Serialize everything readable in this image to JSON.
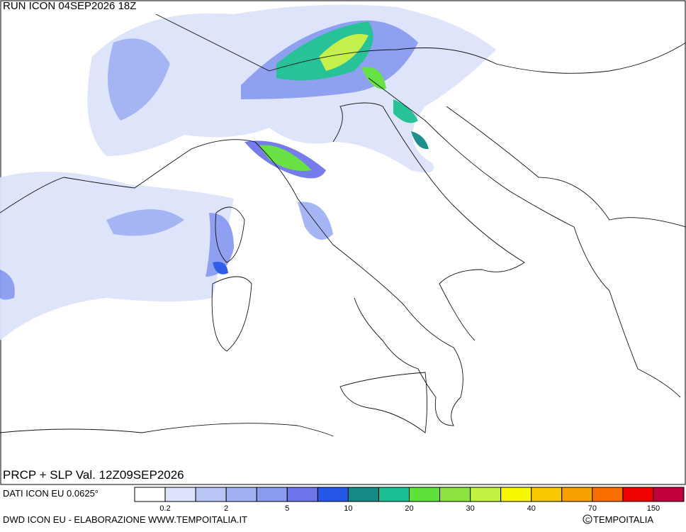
{
  "header": {
    "title": "RUN ICON 04SEP2026 18Z"
  },
  "map": {
    "caption": "PRCP + SLP Val. 12Z09SEP2026"
  },
  "footer": {
    "source": "DATI ICON EU 0.0625°",
    "credit": "DWD ICON EU - ELABORAZIONE WWW.TEMPOITALIA.IT",
    "copyright": "TEMPOITALIA"
  },
  "colorbar": {
    "colors": [
      "#ffffff",
      "#dde3fa",
      "#bac6f6",
      "#a1b2f3",
      "#8b9bf0",
      "#6f76eb",
      "#2457e6",
      "#148a86",
      "#1cbf93",
      "#5fe03a",
      "#8ee43e",
      "#c2f043",
      "#f8f800",
      "#f8c800",
      "#f8a200",
      "#f86e00",
      "#f00000",
      "#c0003c"
    ],
    "labels": [
      0.2,
      2,
      5,
      10,
      20,
      30,
      40,
      70,
      150
    ]
  }
}
